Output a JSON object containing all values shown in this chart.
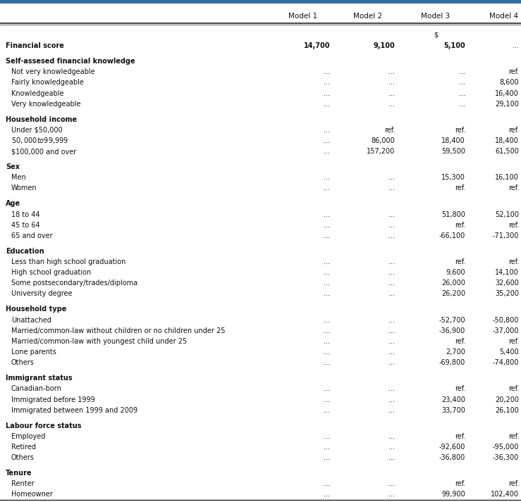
{
  "top_bar_color": "#2e6da4",
  "background_color": "#ffffff",
  "text_color": "#111111",
  "columns": [
    "Model 1",
    "Model 2",
    "Model 3",
    "Model 4"
  ],
  "font_size": 7.0,
  "header_font_size": 7.5,
  "rows": [
    {
      "label": "Financial score",
      "bold": true,
      "indent": false,
      "values": [
        "14,700",
        "9,100",
        "5,100",
        "..."
      ],
      "val_bold": true,
      "spacer": false
    },
    {
      "label": "",
      "bold": false,
      "indent": false,
      "values": [
        "",
        "",
        "",
        ""
      ],
      "val_bold": false,
      "spacer": true
    },
    {
      "label": "Self-assesed financial knowledge",
      "bold": true,
      "indent": false,
      "values": [
        "",
        "",
        "",
        ""
      ],
      "val_bold": false,
      "spacer": false
    },
    {
      "label": "Not very knowledgeable",
      "bold": false,
      "indent": true,
      "values": [
        "...",
        "...",
        "...",
        "ref."
      ],
      "val_bold": false,
      "spacer": false
    },
    {
      "label": "Fairly knowledgeable",
      "bold": false,
      "indent": true,
      "values": [
        "...",
        "...",
        "...",
        "8,600"
      ],
      "val_bold": false,
      "spacer": false
    },
    {
      "label": "Knowledgeable",
      "bold": false,
      "indent": true,
      "values": [
        "...",
        "...",
        "...",
        "16,400"
      ],
      "val_bold": false,
      "spacer": false
    },
    {
      "label": "Very knowledgeable",
      "bold": false,
      "indent": true,
      "values": [
        "...",
        "...",
        "...",
        "29,100"
      ],
      "val_bold": false,
      "spacer": false
    },
    {
      "label": "",
      "bold": false,
      "indent": false,
      "values": [
        "",
        "",
        "",
        ""
      ],
      "val_bold": false,
      "spacer": true
    },
    {
      "label": "Household income",
      "bold": true,
      "indent": false,
      "values": [
        "",
        "",
        "",
        ""
      ],
      "val_bold": false,
      "spacer": false
    },
    {
      "label": "Under $50,000",
      "bold": false,
      "indent": true,
      "values": [
        "...",
        "ref.",
        "ref.",
        "ref."
      ],
      "val_bold": false,
      "spacer": false
    },
    {
      "label": "$50,000 to $99,999",
      "bold": false,
      "indent": true,
      "values": [
        "...",
        "86,000",
        "18,400",
        "18,400"
      ],
      "val_bold": false,
      "spacer": false
    },
    {
      "label": "$100,000 and over",
      "bold": false,
      "indent": true,
      "values": [
        "...",
        "157,200",
        "59,500",
        "61,500"
      ],
      "val_bold": false,
      "spacer": false
    },
    {
      "label": "",
      "bold": false,
      "indent": false,
      "values": [
        "",
        "",
        "",
        ""
      ],
      "val_bold": false,
      "spacer": true
    },
    {
      "label": "Sex",
      "bold": true,
      "indent": false,
      "values": [
        "",
        "",
        "",
        ""
      ],
      "val_bold": false,
      "spacer": false
    },
    {
      "label": "Men",
      "bold": false,
      "indent": true,
      "values": [
        "...",
        "...",
        "15,300",
        "16,100"
      ],
      "val_bold": false,
      "spacer": false
    },
    {
      "label": "Women",
      "bold": false,
      "indent": true,
      "values": [
        "...",
        "...",
        "ref.",
        "ref."
      ],
      "val_bold": false,
      "spacer": false
    },
    {
      "label": "",
      "bold": false,
      "indent": false,
      "values": [
        "",
        "",
        "",
        ""
      ],
      "val_bold": false,
      "spacer": true
    },
    {
      "label": "Age",
      "bold": true,
      "indent": false,
      "values": [
        "",
        "",
        "",
        ""
      ],
      "val_bold": false,
      "spacer": false
    },
    {
      "label": "18 to 44",
      "bold": false,
      "indent": true,
      "values": [
        "...",
        "...",
        "51,800",
        "52,100"
      ],
      "val_bold": false,
      "spacer": false
    },
    {
      "label": "45 to 64",
      "bold": false,
      "indent": true,
      "values": [
        "...",
        "...",
        "ref.",
        "ref."
      ],
      "val_bold": false,
      "spacer": false
    },
    {
      "label": "65 and over",
      "bold": false,
      "indent": true,
      "values": [
        "...",
        "...",
        "-66,100",
        "-71,300"
      ],
      "val_bold": false,
      "spacer": false
    },
    {
      "label": "",
      "bold": false,
      "indent": false,
      "values": [
        "",
        "",
        "",
        ""
      ],
      "val_bold": false,
      "spacer": true
    },
    {
      "label": "Education",
      "bold": true,
      "indent": false,
      "values": [
        "",
        "",
        "",
        ""
      ],
      "val_bold": false,
      "spacer": false
    },
    {
      "label": "Less than high school graduation",
      "bold": false,
      "indent": true,
      "values": [
        "...",
        "...",
        "ref.",
        "ref."
      ],
      "val_bold": false,
      "spacer": false
    },
    {
      "label": "High school graduation",
      "bold": false,
      "indent": true,
      "values": [
        "...",
        "...",
        "9,600",
        "14,100"
      ],
      "val_bold": false,
      "spacer": false
    },
    {
      "label": "Some postsecondary/trades/diploma",
      "bold": false,
      "indent": true,
      "values": [
        "...",
        "...",
        "26,000",
        "32,600"
      ],
      "val_bold": false,
      "spacer": false
    },
    {
      "label": "University degree",
      "bold": false,
      "indent": true,
      "values": [
        "...",
        "...",
        "26,200",
        "35,200"
      ],
      "val_bold": false,
      "spacer": false
    },
    {
      "label": "",
      "bold": false,
      "indent": false,
      "values": [
        "",
        "",
        "",
        ""
      ],
      "val_bold": false,
      "spacer": true
    },
    {
      "label": "Household type",
      "bold": true,
      "indent": false,
      "values": [
        "",
        "",
        "",
        ""
      ],
      "val_bold": false,
      "spacer": false
    },
    {
      "label": "Unattached",
      "bold": false,
      "indent": true,
      "values": [
        "...",
        "...",
        "-52,700",
        "-50,800"
      ],
      "val_bold": false,
      "spacer": false
    },
    {
      "label": "Married/common-law without children or no children under 25",
      "bold": false,
      "indent": true,
      "values": [
        "...",
        "...",
        "-36,900",
        "-37,000"
      ],
      "val_bold": false,
      "spacer": false
    },
    {
      "label": "Married/common-law with youngest child under 25",
      "bold": false,
      "indent": true,
      "values": [
        "...",
        "...",
        "ref.",
        "ref."
      ],
      "val_bold": false,
      "spacer": false
    },
    {
      "label": "Lone parents",
      "bold": false,
      "indent": true,
      "values": [
        "...",
        "...",
        "2,700",
        "5,400"
      ],
      "val_bold": false,
      "spacer": false
    },
    {
      "label": "Others",
      "bold": false,
      "indent": true,
      "values": [
        "...",
        "...",
        "-69,800",
        "-74,800"
      ],
      "val_bold": false,
      "spacer": false
    },
    {
      "label": "",
      "bold": false,
      "indent": false,
      "values": [
        "",
        "",
        "",
        ""
      ],
      "val_bold": false,
      "spacer": true
    },
    {
      "label": "Immigrant status",
      "bold": true,
      "indent": false,
      "values": [
        "",
        "",
        "",
        ""
      ],
      "val_bold": false,
      "spacer": false
    },
    {
      "label": "Canadian-born",
      "bold": false,
      "indent": true,
      "values": [
        "...",
        "...",
        "ref.",
        "ref."
      ],
      "val_bold": false,
      "spacer": false
    },
    {
      "label": "Immigrated before 1999",
      "bold": false,
      "indent": true,
      "values": [
        "...",
        "...",
        "23,400",
        "20,200"
      ],
      "val_bold": false,
      "spacer": false
    },
    {
      "label": "Immigrated between 1999 and 2009",
      "bold": false,
      "indent": true,
      "values": [
        "...",
        "...",
        "33,700",
        "26,100"
      ],
      "val_bold": false,
      "spacer": false
    },
    {
      "label": "",
      "bold": false,
      "indent": false,
      "values": [
        "",
        "",
        "",
        ""
      ],
      "val_bold": false,
      "spacer": true
    },
    {
      "label": "Labour force status",
      "bold": true,
      "indent": false,
      "values": [
        "",
        "",
        "",
        ""
      ],
      "val_bold": false,
      "spacer": false
    },
    {
      "label": "Employed",
      "bold": false,
      "indent": true,
      "values": [
        "...",
        "...",
        "ref.",
        "ref."
      ],
      "val_bold": false,
      "spacer": false
    },
    {
      "label": "Retired",
      "bold": false,
      "indent": true,
      "values": [
        "...",
        "...",
        "-92,600",
        "-95,000"
      ],
      "val_bold": false,
      "spacer": false
    },
    {
      "label": "Others",
      "bold": false,
      "indent": true,
      "values": [
        "...",
        "...",
        "-36,800",
        "-36,300"
      ],
      "val_bold": false,
      "spacer": false
    },
    {
      "label": "",
      "bold": false,
      "indent": false,
      "values": [
        "",
        "",
        "",
        ""
      ],
      "val_bold": false,
      "spacer": true
    },
    {
      "label": "Tenure",
      "bold": true,
      "indent": false,
      "values": [
        "",
        "",
        "",
        ""
      ],
      "val_bold": false,
      "spacer": false
    },
    {
      "label": "Renter",
      "bold": false,
      "indent": true,
      "values": [
        "...",
        "...",
        "ref.",
        "ref."
      ],
      "val_bold": false,
      "spacer": false
    },
    {
      "label": "Homeowner",
      "bold": false,
      "indent": true,
      "values": [
        "...",
        "...",
        "99,900",
        "102,400"
      ],
      "val_bold": false,
      "spacer": false
    }
  ]
}
